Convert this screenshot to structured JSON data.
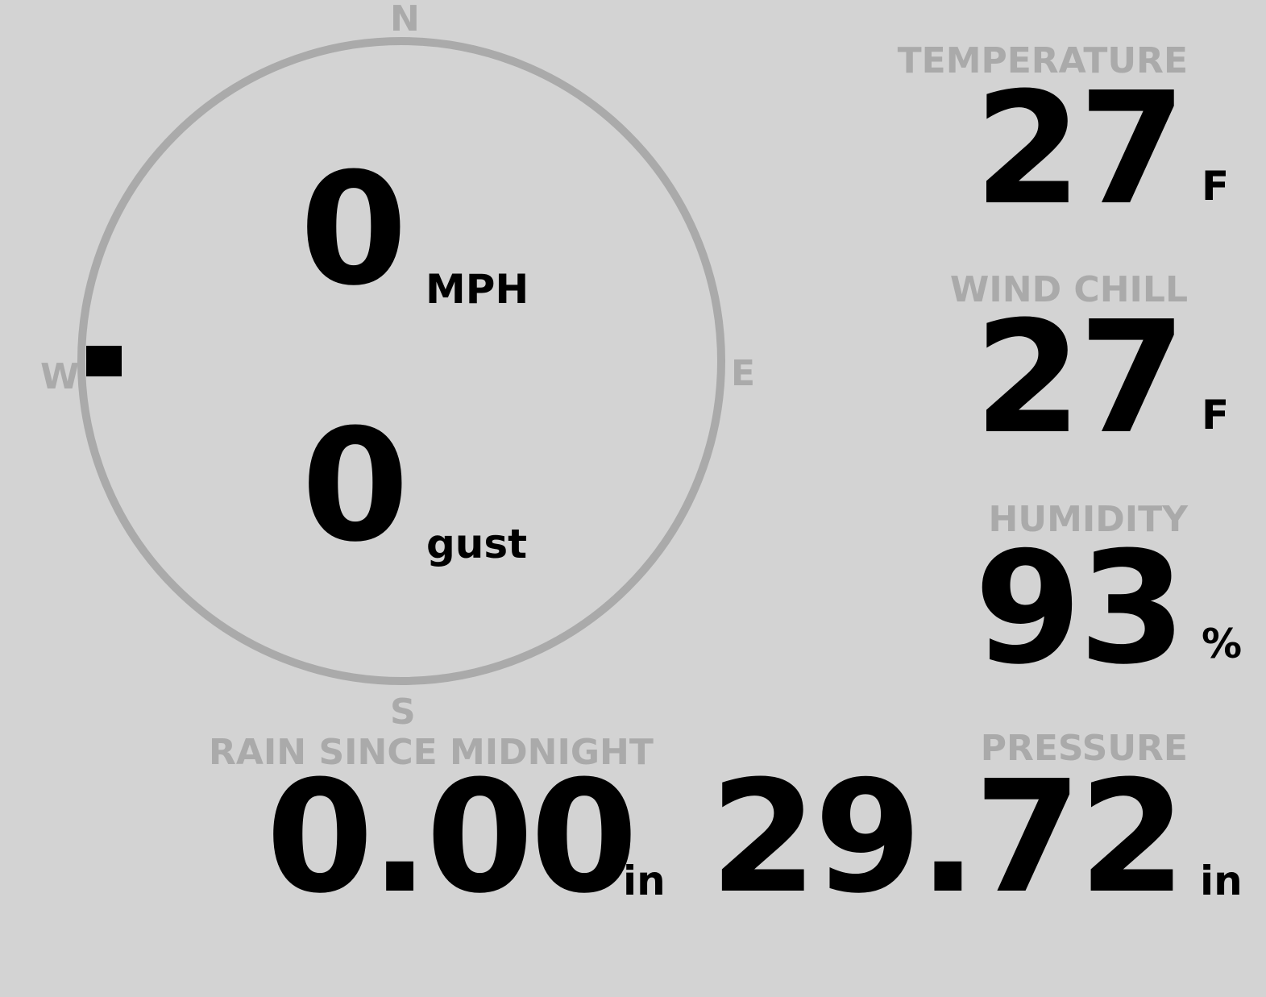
{
  "compass": {
    "north": "N",
    "south": "S",
    "east": "E",
    "west": "W",
    "direction_deg": 270,
    "ring_color": "#aaaaaa",
    "marker_color": "#000000"
  },
  "wind": {
    "speed": "0",
    "speed_unit": "MPH",
    "gust": "0",
    "gust_unit": "gust"
  },
  "temperature": {
    "label": "TEMPERATURE",
    "value": "27",
    "unit": "F"
  },
  "wind_chill": {
    "label": "WIND CHILL",
    "value": "27",
    "unit": "F"
  },
  "humidity": {
    "label": "HUMIDITY",
    "value": "93",
    "unit": "%"
  },
  "pressure": {
    "label": "PRESSURE",
    "value": "29.72",
    "unit": "in"
  },
  "rain": {
    "label": "RAIN SINCE MIDNIGHT",
    "value": "0.00",
    "unit": "in"
  },
  "colors": {
    "background": "#d3d3d3",
    "label": "#aaaaaa",
    "value": "#000000"
  }
}
